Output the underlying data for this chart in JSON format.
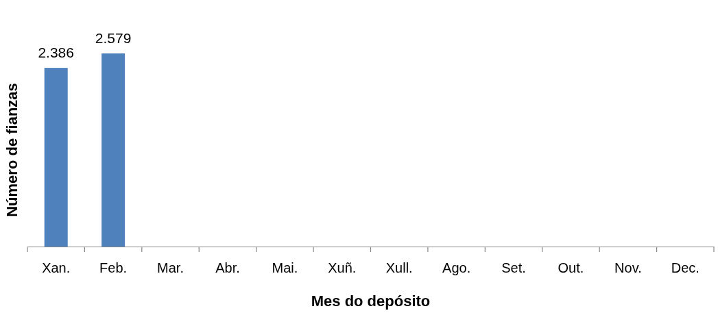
{
  "chart_data": {
    "type": "bar",
    "xlabel": "Mes do depósito",
    "ylabel": "Número de fianzas",
    "categories": [
      "Xan.",
      "Feb.",
      "Mar.",
      "Abr.",
      "Mai.",
      "Xuñ.",
      "Xull.",
      "Ago.",
      "Set.",
      "Out.",
      "Nov.",
      "Dec."
    ],
    "values": [
      2386,
      2579,
      null,
      null,
      null,
      null,
      null,
      null,
      null,
      null,
      null,
      null
    ],
    "value_labels": [
      "2.386",
      "2.579",
      null,
      null,
      null,
      null,
      null,
      null,
      null,
      null,
      null,
      null
    ],
    "color": "#4f81bd",
    "tick_labels": "x"
  }
}
